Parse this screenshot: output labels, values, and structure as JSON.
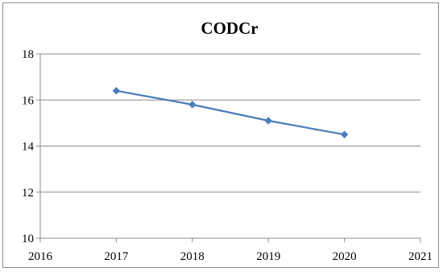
{
  "chart_data": {
    "type": "line",
    "title": "CODCr",
    "xlabel": "",
    "ylabel": "",
    "xlim": [
      2016,
      2021
    ],
    "ylim": [
      10,
      18
    ],
    "x_ticks": [
      2016,
      2017,
      2018,
      2019,
      2020,
      2021
    ],
    "x_tick_labels": [
      "2016",
      "2017",
      "2018",
      "2019",
      "2020",
      "2021"
    ],
    "y_ticks": [
      10,
      12,
      14,
      16,
      18
    ],
    "y_tick_labels": [
      "10",
      "12",
      "14",
      "16",
      "18"
    ],
    "grid": "horizontal",
    "legend": "none",
    "series": [
      {
        "x": [
          2017,
          2018,
          2019,
          2020
        ],
        "y": [
          16.4,
          15.8,
          15.1,
          14.5
        ],
        "color": "#4a7ebb",
        "marker": "diamond"
      }
    ]
  }
}
